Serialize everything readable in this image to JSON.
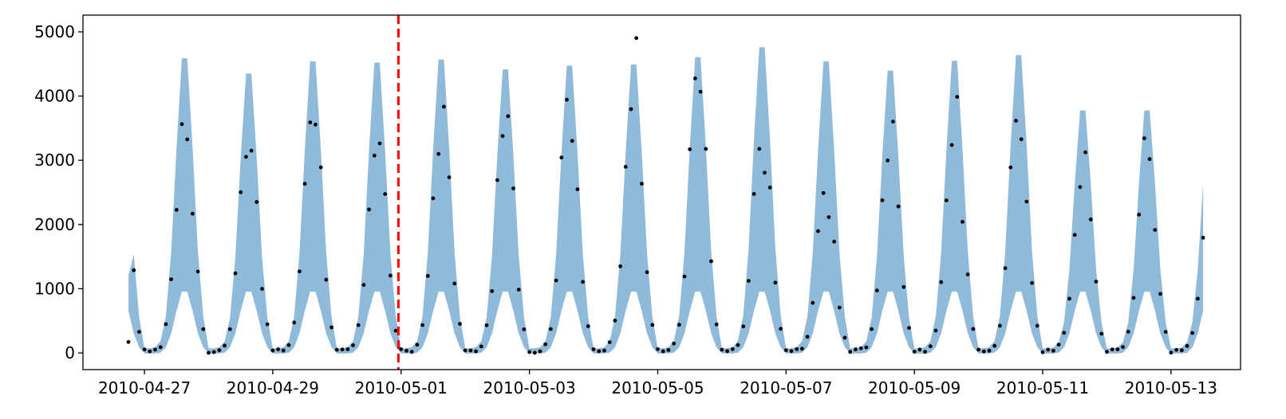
{
  "chart_data": {
    "type": "scatter",
    "title": "",
    "xlabel": "",
    "ylabel": "",
    "x_range": [
      "2010-04-26T01:00",
      "2010-05-14T02:00"
    ],
    "ylim": [
      -260,
      5260
    ],
    "grid": false,
    "legend": "none",
    "yticks": [
      0,
      1000,
      2000,
      3000,
      4000,
      5000
    ],
    "xticks": [
      "2010-04-27",
      "2010-04-29",
      "2010-05-01",
      "2010-05-03",
      "2010-05-05",
      "2010-05-07",
      "2010-05-09",
      "2010-05-11",
      "2010-05-13"
    ],
    "series_start": "2010-04-26T18:00",
    "series_end": "2010-05-13T12:00",
    "series_step_hours": 2,
    "daily_peak_hour": 15,
    "observed_peaks": [
      3700,
      3850,
      3780,
      4250,
      3700,
      3850,
      3660,
      4160,
      4800,
      4460,
      3550,
      2600,
      3500,
      3750,
      3920,
      3200
    ],
    "observed_min": 0,
    "band_lower_peak": 1000,
    "band_upper_peaks": [
      4700,
      4800,
      4550,
      4750,
      4730,
      4780,
      4620,
      4680,
      4700,
      4820,
      4980,
      4750,
      4600,
      4760,
      4850,
      3950
    ],
    "band_upper_start": 1200,
    "vline": {
      "x": "2010-04-30T23:00",
      "style": "dashed",
      "color": "#ff0000"
    },
    "colors": {
      "band": "#8fbad9",
      "points": "#000000",
      "axis": "#000000"
    }
  }
}
